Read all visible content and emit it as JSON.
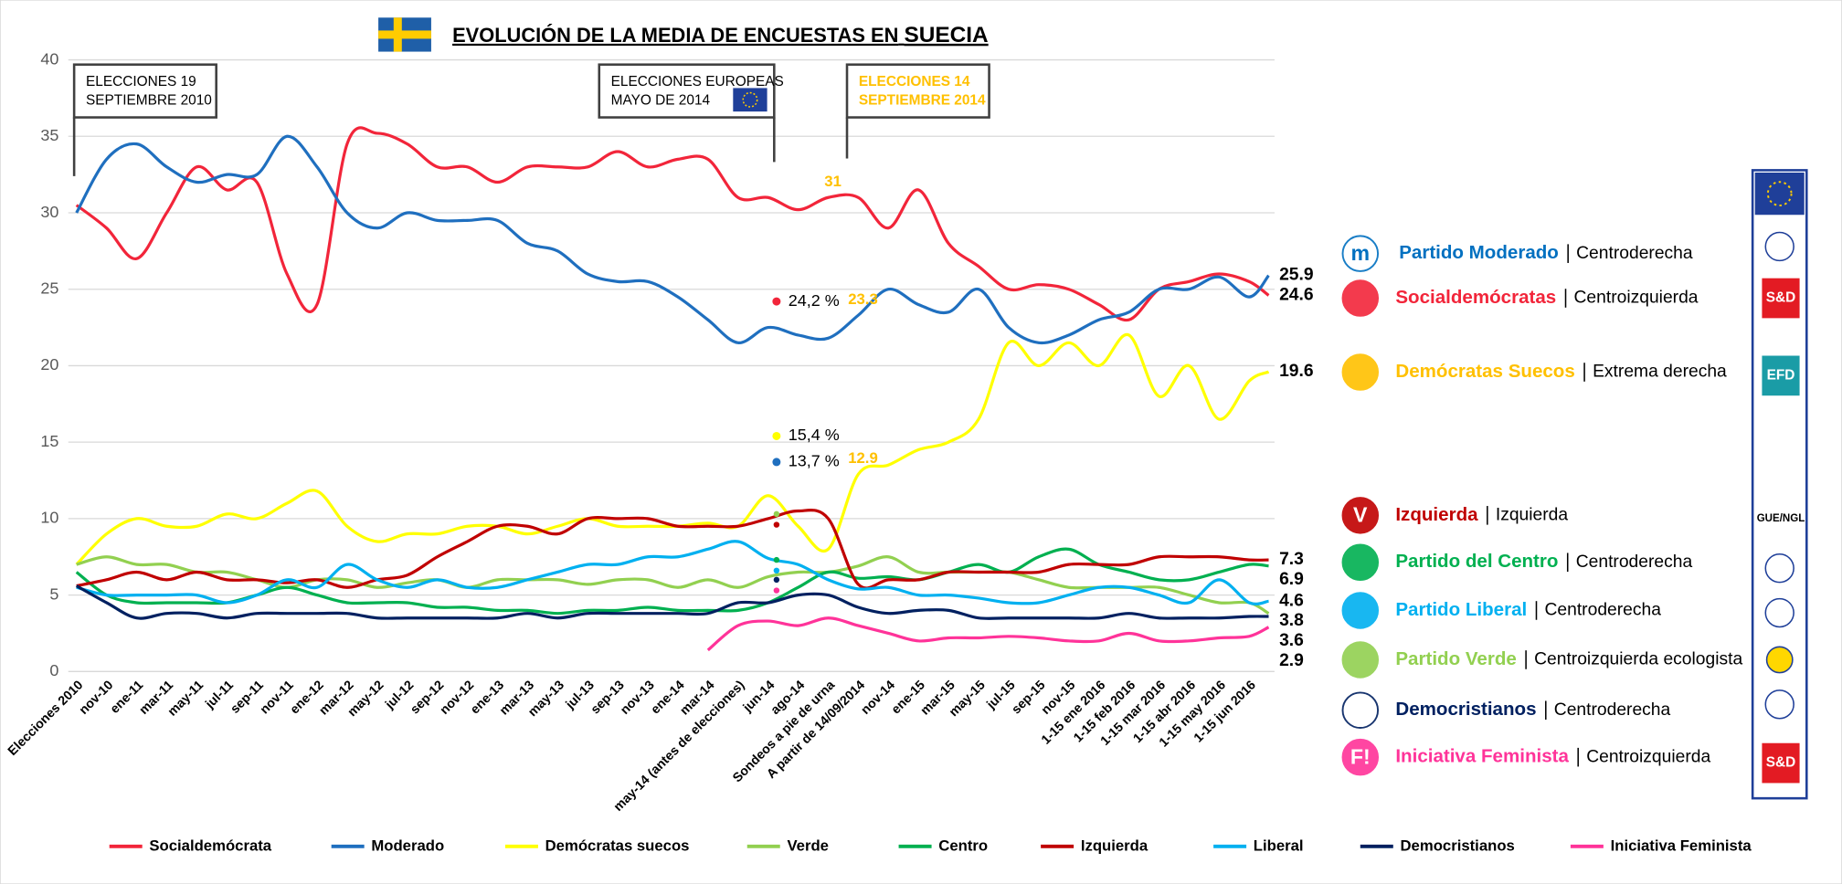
{
  "chart_data": {
    "type": "line",
    "title": "EVOLUCIÓN DE LA MEDIA DE ENCUESTAS EN",
    "title_country": "SUECIA",
    "categories": [
      "Elecciones 2010",
      "nov-10",
      "ene-11",
      "mar-11",
      "may-11",
      "jul-11",
      "sep-11",
      "nov-11",
      "ene-12",
      "mar-12",
      "may-12",
      "jul-12",
      "sep-12",
      "nov-12",
      "ene-13",
      "mar-13",
      "may-13",
      "jul-13",
      "sep-13",
      "nov-13",
      "ene-14",
      "mar-14",
      "may-14 (antes de elecciones)",
      "jun-14",
      "ago-14",
      "Sondeos a pie de urna",
      "A partir de 14/09/2014",
      "nov-14",
      "ene-15",
      "mar-15",
      "may-15",
      "jul-15",
      "sep-15",
      "nov-15",
      "1-15 ene 2016",
      "1-15 feb 2016",
      "1-15 mar 2016",
      "1-15 abr 2016",
      "1-15 may 2016",
      "1-15 jun 2016",
      null
    ],
    "ylim": [
      0,
      40
    ],
    "yticks": [
      0,
      5,
      10,
      15,
      20,
      25,
      30,
      35,
      40
    ],
    "grid": true,
    "value_label_color": "#ffc000",
    "series": [
      {
        "name": "Socialdemócrata",
        "color": "#f2253a",
        "values": [
          30.5,
          29,
          27,
          30,
          33,
          31.5,
          32,
          26,
          24,
          34.5,
          35.2,
          34.5,
          33,
          33,
          32,
          33,
          33,
          33,
          34,
          33,
          33.5,
          33.5,
          31,
          31,
          30.2,
          31,
          31,
          29,
          31.5,
          28,
          26.5,
          25,
          25.3,
          25,
          24,
          23,
          25,
          25.5,
          26,
          25.5,
          24.6
        ],
        "value_labels": [
          null,
          null,
          null,
          null,
          null,
          null,
          null,
          null,
          null,
          null,
          null,
          null,
          null,
          null,
          null,
          null,
          null,
          null,
          null,
          null,
          null,
          null,
          null,
          null,
          null,
          "31",
          null,
          null,
          null,
          null,
          null,
          null,
          null,
          null,
          null,
          null,
          null,
          null,
          null,
          null,
          null
        ]
      },
      {
        "name": "Moderado",
        "color": "#1f6fbf",
        "values": [
          30,
          33.5,
          34.5,
          33,
          32,
          32.5,
          32.5,
          35,
          33,
          30,
          29,
          30,
          29.5,
          29.5,
          29.5,
          28,
          27.5,
          26,
          25.5,
          25.5,
          24.5,
          23,
          21.5,
          22.5,
          22,
          21.8,
          23.3,
          25,
          24,
          23.5,
          25,
          22.5,
          21.5,
          22,
          23,
          23.5,
          25,
          25,
          25.8,
          24.5,
          25.9
        ],
        "value_labels": [
          null,
          null,
          null,
          null,
          null,
          null,
          null,
          null,
          null,
          null,
          null,
          null,
          null,
          null,
          null,
          null,
          null,
          null,
          null,
          null,
          null,
          null,
          null,
          null,
          null,
          null,
          "23.3",
          null,
          null,
          null,
          null,
          null,
          null,
          null,
          null,
          null,
          null,
          null,
          null,
          null,
          null
        ]
      },
      {
        "name": "Demócratas suecos",
        "color": "#ffff00",
        "values": [
          7,
          9,
          10,
          9.5,
          9.5,
          10.3,
          10,
          11,
          11.8,
          9.5,
          8.5,
          9,
          9,
          9.5,
          9.5,
          9,
          9.5,
          10,
          9.5,
          9.5,
          9.5,
          9.7,
          9.5,
          11.5,
          9.5,
          8,
          12.9,
          13.5,
          14.5,
          15,
          16.5,
          21.5,
          20,
          21.5,
          20,
          22,
          18,
          20,
          16.5,
          19,
          19.6
        ],
        "value_labels": [
          null,
          null,
          null,
          null,
          null,
          null,
          null,
          null,
          null,
          null,
          null,
          null,
          null,
          null,
          null,
          null,
          null,
          null,
          null,
          null,
          null,
          null,
          null,
          null,
          null,
          null,
          "12.9",
          null,
          null,
          null,
          null,
          null,
          null,
          null,
          null,
          null,
          null,
          null,
          null,
          null,
          null
        ]
      },
      {
        "name": "Verde",
        "color": "#92d050",
        "values": [
          7,
          7.5,
          7,
          7,
          6.5,
          6.5,
          6,
          5.5,
          6,
          6,
          5.5,
          5.8,
          6,
          5.5,
          6,
          6,
          6,
          5.7,
          6,
          6,
          5.5,
          6,
          5.5,
          6.2,
          6.5,
          6.5,
          6.9,
          7.5,
          6.5,
          6.5,
          6.5,
          6.5,
          6,
          5.5,
          5.5,
          5.5,
          5.5,
          5,
          4.5,
          4.5,
          3.8
        ]
      },
      {
        "name": "Centro",
        "color": "#00b050",
        "values": [
          6.5,
          5,
          4.5,
          4.5,
          4.5,
          4.5,
          5,
          5.5,
          5,
          4.5,
          4.5,
          4.5,
          4.2,
          4.2,
          4,
          4,
          3.8,
          4,
          4,
          4.2,
          4,
          4,
          4,
          4.5,
          5.5,
          6.5,
          6.1,
          6.2,
          6,
          6.5,
          7,
          6.5,
          7.5,
          8,
          7,
          6.5,
          6,
          6,
          6.5,
          7,
          6.9
        ]
      },
      {
        "name": "Izquierda",
        "color": "#c00000",
        "values": [
          5.6,
          6,
          6.5,
          6,
          6.5,
          6,
          6,
          5.8,
          6,
          5.5,
          6,
          6.3,
          7.5,
          8.5,
          9.5,
          9.5,
          9,
          10,
          10,
          10,
          9.5,
          9.5,
          9.5,
          10,
          10.5,
          10,
          5.7,
          6,
          6,
          6.5,
          6.5,
          6.5,
          6.5,
          7,
          7,
          7,
          7.5,
          7.5,
          7.5,
          7.3,
          7.3
        ]
      },
      {
        "name": "Liberal",
        "color": "#00b0f0",
        "values": [
          5.5,
          5,
          5,
          5,
          5,
          4.5,
          5,
          6,
          5.5,
          7,
          6,
          5.5,
          6,
          5.5,
          5.5,
          6,
          6.5,
          7,
          7,
          7.5,
          7.5,
          8,
          8.5,
          7.4,
          7,
          6,
          5.4,
          5.5,
          5,
          5,
          4.8,
          4.5,
          4.5,
          5,
          5.5,
          5.5,
          5,
          4.5,
          6,
          4.5,
          4.6
        ]
      },
      {
        "name": "Democristianos",
        "color": "#002060",
        "values": [
          5.6,
          4.5,
          3.5,
          3.8,
          3.8,
          3.5,
          3.8,
          3.8,
          3.8,
          3.8,
          3.5,
          3.5,
          3.5,
          3.5,
          3.5,
          3.8,
          3.5,
          3.8,
          3.8,
          3.8,
          3.8,
          3.8,
          4.5,
          4.5,
          5,
          5,
          4.2,
          3.8,
          4,
          4,
          3.5,
          3.5,
          3.5,
          3.5,
          3.5,
          3.8,
          3.5,
          3.5,
          3.5,
          3.6,
          3.6
        ]
      },
      {
        "name": "Iniciativa Feminista",
        "color": "#ff3399",
        "values": [
          null,
          null,
          null,
          null,
          null,
          null,
          null,
          null,
          null,
          null,
          null,
          null,
          null,
          null,
          null,
          null,
          null,
          null,
          null,
          null,
          null,
          1.4,
          3,
          3.3,
          3,
          3.5,
          3,
          2.5,
          2,
          2.2,
          2.2,
          2.3,
          2.2,
          2,
          2,
          2.5,
          2,
          2,
          2.2,
          2.3,
          2.9
        ]
      }
    ],
    "european_results": {
      "values": [
        24.2,
        15.4,
        13.7,
        10.3,
        9.6,
        7.3,
        6.6,
        6.0,
        5.3
      ],
      "value_labels": [
        "24,2 %",
        "15,4 %",
        "13,7 %",
        null,
        null,
        null,
        null,
        null,
        null
      ],
      "colors": [
        "#f2253a",
        "#ffff00",
        "#1f6fbf",
        "#92d050",
        "#c00000",
        "#00b050",
        "#00b0f0",
        "#002060",
        "#ff3399"
      ]
    },
    "annotations": [
      {
        "lines": [
          "ELECCIONES 19",
          "SEPTIEMBRE 2010"
        ],
        "color": "#000000"
      },
      {
        "lines": [
          "ELECCIONES EUROPEAS",
          "MAYO DE 2014"
        ],
        "color": "#000000"
      },
      {
        "lines": [
          "ELECCIONES 14",
          "SEPTIEMBRE 2014"
        ],
        "color": "#ffc000"
      }
    ]
  },
  "parties": [
    {
      "name": "Partido Moderado",
      "label": "Centroderecha",
      "color": "#0070c0",
      "logo": "m"
    },
    {
      "name": "Socialdemócratas",
      "label": "Centroizquierda",
      "color": "#f2253a",
      "logo": null
    },
    {
      "name": "Demócratas Suecos",
      "label": "Extrema derecha",
      "color": "#ffc000",
      "logo": null
    },
    {
      "name": "Izquierda",
      "label": "Izquierda",
      "color": "#c00000",
      "logo": "V"
    },
    {
      "name": "Partido del Centro",
      "label": "Centroderecha",
      "color": "#00b050",
      "logo": null
    },
    {
      "name": "Partido Liberal",
      "label": "Centroderecha",
      "color": "#00b0f0",
      "logo": null
    },
    {
      "name": "Partido Verde",
      "label": "Centroizquierda ecologista",
      "color": "#92d050",
      "logo": null
    },
    {
      "name": "Democristianos",
      "label": "Centroderecha",
      "color": "#002060",
      "logo": null
    },
    {
      "name": "Iniciativa Feminista",
      "label": "Centroizquierda",
      "color": "#ff3399",
      "logo": "F!"
    }
  ],
  "eu_groups": [
    "S&D",
    "EFD",
    "GUE/NGL",
    "S&D"
  ]
}
